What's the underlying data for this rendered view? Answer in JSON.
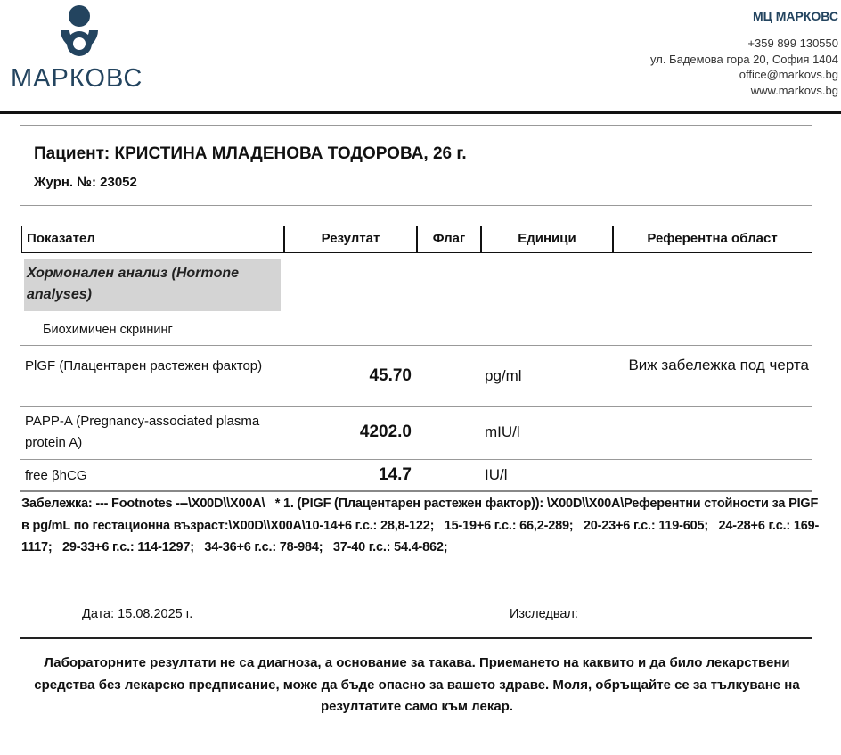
{
  "clinic": {
    "logo_text": "МАРКОВС",
    "name": "МЦ МАРКОВС",
    "phone": "+359 899 130550",
    "address": "ул. Бадемова гора 20, София 1404",
    "email": "office@markovs.bg",
    "website": "www.markovs.bg",
    "brand_color": "#23445f"
  },
  "patient": {
    "title": "Пациент: КРИСТИНА МЛАДЕНОВА ТОДОРОВА, 26 г.",
    "journal": "Журн. №: 23052"
  },
  "table": {
    "headers": [
      "Показател",
      "Резултат",
      "Флаг",
      "Единици",
      "Референтна област"
    ],
    "group": "Хормонален анализ (Hormone analyses)",
    "subgroup": "Биохимичен скрининг",
    "rows": [
      {
        "name": "PlGF (Плацентарен растежен фактор)",
        "result": "45.70",
        "flag": "",
        "unit": "pg/ml",
        "ref": "Виж забележка под черта"
      },
      {
        "name": "PAPP-A (Pregnancy-associated plasma protein A)",
        "result": "4202.0",
        "flag": "",
        "unit": "mIU/l",
        "ref": ""
      },
      {
        "name": "free βhCG",
        "result": "14.7",
        "flag": "",
        "unit": "IU/l",
        "ref": ""
      }
    ]
  },
  "footnote": "Забележка: --- Footnotes ---\\X00D\\\\X00A\\   * 1. (PIGF (Плацентарен растежен фактор)): \\X00D\\\\X00A\\Референтни стойности за PIGF  в pg/mL по гестационна възраст:\\X00D\\\\X00A\\10-14+6 г.с.: 28,8-122;   15-19+6 г.с.: 66,2-289;   20-23+6 г.с.: 119-605;   24-28+6 г.с.: 169-1117;   29-33+6 г.с.: 114-1297;   34-36+6 г.с.: 78-984;   37-40 г.с.: 54.4-862;",
  "date": "Дата: 15.08.2025 г.",
  "examined_by": "Изследвал:",
  "disclaimer": "Лабораторните резултати не са диагноза, а основание за такава. Приемането на каквито и да било лекарствени средства без лекарско предписание, може да бъде опасно за вашето здраве. Моля, обръщайте се за тълкуване на резултатите само към лекар."
}
